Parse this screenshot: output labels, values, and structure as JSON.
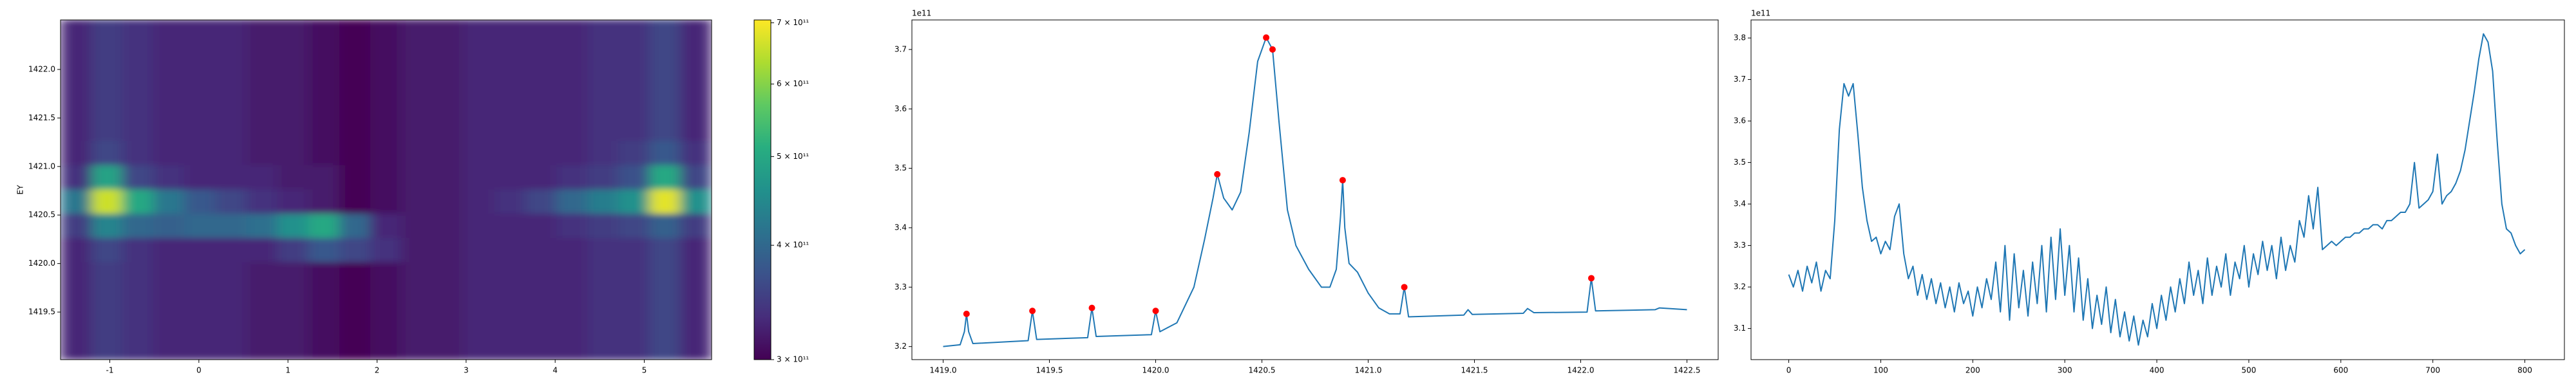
{
  "chart_data": [
    {
      "type": "heatmap",
      "ylabel": "EY",
      "xlim": [
        -1.553,
        5.756
      ],
      "ylim": [
        1419.01,
        1422.51
      ],
      "xticks": [
        -1,
        0,
        1,
        2,
        3,
        4,
        5
      ],
      "yticks": [
        1419.5,
        {
          "value": 1420,
          "label": "1420.0"
        },
        1420.5,
        {
          "value": 1421,
          "label": "1421.0"
        },
        1421.5,
        {
          "value": 1422,
          "label": "1422.0"
        }
      ],
      "colormap": "viridis",
      "color_scale": "log",
      "clim": [
        300000000000.0,
        705000000000.0
      ],
      "colorbar_ticks": [
        {
          "value": 300000000000.0,
          "label": "3 × 10¹¹"
        },
        {
          "value": 400000000000.0,
          "label": "4 × 10¹¹"
        },
        {
          "value": 500000000000.0,
          "label": "5 × 10¹¹"
        },
        {
          "value": 600000000000.0,
          "label": "6 × 10¹¹"
        },
        {
          "value": 700000000000.0,
          "label": "7 × 10¹¹"
        }
      ],
      "z": [
        [
          330000000000.0,
          350000000000.0,
          340000000000.0,
          330000000000.0,
          330000000000.0,
          330000000000.0,
          320000000000.0,
          320000000000.0,
          310000000000.0,
          300000000000.0,
          310000000000.0,
          320000000000.0,
          320000000000.0,
          330000000000.0,
          330000000000.0,
          330000000000.0,
          330000000000.0,
          340000000000.0,
          340000000000.0,
          360000000000.0,
          330000000000.0
        ],
        [
          330000000000.0,
          350000000000.0,
          340000000000.0,
          330000000000.0,
          330000000000.0,
          330000000000.0,
          320000000000.0,
          320000000000.0,
          310000000000.0,
          300000000000.0,
          310000000000.0,
          320000000000.0,
          320000000000.0,
          330000000000.0,
          330000000000.0,
          330000000000.0,
          330000000000.0,
          340000000000.0,
          340000000000.0,
          360000000000.0,
          330000000000.0
        ],
        [
          330000000000.0,
          350000000000.0,
          340000000000.0,
          330000000000.0,
          330000000000.0,
          330000000000.0,
          320000000000.0,
          320000000000.0,
          310000000000.0,
          300000000000.0,
          310000000000.0,
          320000000000.0,
          320000000000.0,
          330000000000.0,
          330000000000.0,
          330000000000.0,
          330000000000.0,
          340000000000.0,
          340000000000.0,
          360000000000.0,
          330000000000.0
        ],
        [
          330000000000.0,
          350000000000.0,
          340000000000.0,
          330000000000.0,
          330000000000.0,
          330000000000.0,
          320000000000.0,
          320000000000.0,
          310000000000.0,
          300000000000.0,
          310000000000.0,
          320000000000.0,
          320000000000.0,
          330000000000.0,
          330000000000.0,
          330000000000.0,
          330000000000.0,
          340000000000.0,
          340000000000.0,
          360000000000.0,
          330000000000.0
        ],
        [
          330000000000.0,
          350000000000.0,
          340000000000.0,
          330000000000.0,
          330000000000.0,
          330000000000.0,
          320000000000.0,
          320000000000.0,
          310000000000.0,
          300000000000.0,
          310000000000.0,
          320000000000.0,
          320000000000.0,
          330000000000.0,
          330000000000.0,
          330000000000.0,
          330000000000.0,
          340000000000.0,
          340000000000.0,
          360000000000.0,
          330000000000.0
        ],
        [
          330000000000.0,
          360000000000.0,
          340000000000.0,
          330000000000.0,
          330000000000.0,
          330000000000.0,
          320000000000.0,
          320000000000.0,
          310000000000.0,
          300000000000.0,
          310000000000.0,
          320000000000.0,
          320000000000.0,
          330000000000.0,
          330000000000.0,
          330000000000.0,
          330000000000.0,
          340000000000.0,
          350000000000.0,
          380000000000.0,
          340000000000.0
        ],
        [
          340000000000.0,
          490000000000.0,
          360000000000.0,
          340000000000.0,
          330000000000.0,
          330000000000.0,
          330000000000.0,
          320000000000.0,
          320000000000.0,
          300000000000.0,
          310000000000.0,
          320000000000.0,
          320000000000.0,
          330000000000.0,
          330000000000.0,
          330000000000.0,
          340000000000.0,
          350000000000.0,
          370000000000.0,
          500000000000.0,
          360000000000.0
        ],
        [
          420000000000.0,
          660000000000.0,
          500000000000.0,
          420000000000.0,
          380000000000.0,
          360000000000.0,
          340000000000.0,
          330000000000.0,
          320000000000.0,
          300000000000.0,
          310000000000.0,
          320000000000.0,
          320000000000.0,
          330000000000.0,
          340000000000.0,
          360000000000.0,
          400000000000.0,
          430000000000.0,
          460000000000.0,
          680000000000.0,
          460000000000.0
        ],
        [
          350000000000.0,
          440000000000.0,
          400000000000.0,
          390000000000.0,
          400000000000.0,
          400000000000.0,
          410000000000.0,
          460000000000.0,
          500000000000.0,
          400000000000.0,
          330000000000.0,
          320000000000.0,
          320000000000.0,
          330000000000.0,
          330000000000.0,
          330000000000.0,
          340000000000.0,
          350000000000.0,
          360000000000.0,
          390000000000.0,
          350000000000.0
        ],
        [
          330000000000.0,
          360000000000.0,
          340000000000.0,
          330000000000.0,
          330000000000.0,
          330000000000.0,
          330000000000.0,
          350000000000.0,
          380000000000.0,
          360000000000.0,
          340000000000.0,
          320000000000.0,
          320000000000.0,
          330000000000.0,
          330000000000.0,
          330000000000.0,
          330000000000.0,
          340000000000.0,
          340000000000.0,
          360000000000.0,
          330000000000.0
        ],
        [
          330000000000.0,
          350000000000.0,
          340000000000.0,
          330000000000.0,
          330000000000.0,
          330000000000.0,
          320000000000.0,
          320000000000.0,
          310000000000.0,
          300000000000.0,
          310000000000.0,
          320000000000.0,
          320000000000.0,
          330000000000.0,
          330000000000.0,
          330000000000.0,
          330000000000.0,
          340000000000.0,
          340000000000.0,
          360000000000.0,
          330000000000.0
        ],
        [
          330000000000.0,
          350000000000.0,
          340000000000.0,
          330000000000.0,
          330000000000.0,
          330000000000.0,
          320000000000.0,
          320000000000.0,
          310000000000.0,
          300000000000.0,
          310000000000.0,
          320000000000.0,
          320000000000.0,
          330000000000.0,
          330000000000.0,
          330000000000.0,
          330000000000.0,
          340000000000.0,
          340000000000.0,
          360000000000.0,
          330000000000.0
        ],
        [
          330000000000.0,
          350000000000.0,
          340000000000.0,
          330000000000.0,
          330000000000.0,
          330000000000.0,
          320000000000.0,
          320000000000.0,
          310000000000.0,
          300000000000.0,
          310000000000.0,
          320000000000.0,
          320000000000.0,
          330000000000.0,
          330000000000.0,
          330000000000.0,
          330000000000.0,
          340000000000.0,
          340000000000.0,
          360000000000.0,
          330000000000.0
        ],
        [
          330000000000.0,
          350000000000.0,
          340000000000.0,
          330000000000.0,
          330000000000.0,
          330000000000.0,
          320000000000.0,
          320000000000.0,
          310000000000.0,
          300000000000.0,
          310000000000.0,
          320000000000.0,
          320000000000.0,
          330000000000.0,
          330000000000.0,
          330000000000.0,
          330000000000.0,
          340000000000.0,
          340000000000.0,
          360000000000.0,
          330000000000.0
        ]
      ]
    },
    {
      "type": "line",
      "offset_label": "1e11",
      "xlim": [
        1418.853,
        1422.647
      ],
      "ylim": [
        3.178,
        3.7497
      ],
      "xticks": [
        {
          "value": 1419,
          "label": "1419.0"
        },
        1419.5,
        {
          "value": 1420,
          "label": "1420.0"
        },
        1420.5,
        {
          "value": 1421,
          "label": "1421.0"
        },
        1421.5,
        {
          "value": 1422,
          "label": "1422.0"
        },
        1422.5
      ],
      "yticks": [
        3.2,
        3.3,
        3.4,
        3.5,
        3.6,
        3.7
      ],
      "series": [
        {
          "type": "line",
          "color": "#1f77b4",
          "x": [
            1419.0,
            1419.08,
            1419.1,
            1419.11,
            1419.12,
            1419.14,
            1419.4,
            1419.42,
            1419.44,
            1419.68,
            1419.7,
            1419.72,
            1419.98,
            1420.0,
            1420.02,
            1420.1,
            1420.18,
            1420.23,
            1420.27,
            1420.29,
            1420.32,
            1420.36,
            1420.4,
            1420.44,
            1420.48,
            1420.52,
            1420.55,
            1420.58,
            1420.62,
            1420.66,
            1420.72,
            1420.78,
            1420.82,
            1420.85,
            1420.87,
            1420.88,
            1420.89,
            1420.91,
            1420.95,
            1421.0,
            1421.05,
            1421.1,
            1421.15,
            1421.17,
            1421.19,
            1421.45,
            1421.47,
            1421.49,
            1421.73,
            1421.75,
            1421.78,
            1422.03,
            1422.05,
            1422.07,
            1422.35,
            1422.37,
            1422.5
          ],
          "values": [
            3.2,
            3.203,
            3.225,
            3.255,
            3.225,
            3.205,
            3.21,
            3.26,
            3.212,
            3.215,
            3.265,
            3.217,
            3.22,
            3.26,
            3.225,
            3.24,
            3.3,
            3.38,
            3.45,
            3.49,
            3.45,
            3.43,
            3.46,
            3.56,
            3.68,
            3.72,
            3.7,
            3.58,
            3.43,
            3.37,
            3.33,
            3.3,
            3.3,
            3.33,
            3.42,
            3.48,
            3.4,
            3.34,
            3.325,
            3.29,
            3.265,
            3.255,
            3.255,
            3.3,
            3.25,
            3.253,
            3.262,
            3.254,
            3.256,
            3.264,
            3.257,
            3.258,
            3.315,
            3.26,
            3.262,
            3.265,
            3.262
          ]
        },
        {
          "type": "scatter",
          "color": "#ff0000",
          "x": [
            1419.11,
            1419.42,
            1419.7,
            1420.0,
            1420.29,
            1420.52,
            1420.55,
            1420.88,
            1421.17,
            1422.05
          ],
          "values": [
            3.255,
            3.26,
            3.265,
            3.26,
            3.49,
            3.72,
            3.7,
            3.48,
            3.3,
            3.315
          ]
        }
      ]
    },
    {
      "type": "line",
      "offset_label": "1e11",
      "xlim": [
        -41,
        843
      ],
      "ylim": [
        3.025,
        3.8435
      ],
      "xticks": [
        0,
        100,
        200,
        300,
        400,
        500,
        600,
        700,
        800
      ],
      "yticks": [
        3.1,
        3.2,
        3.3,
        3.4,
        3.5,
        3.6,
        3.7,
        3.8
      ],
      "series": [
        {
          "type": "line",
          "color": "#1f77b4",
          "x": [
            0,
            5,
            10,
            15,
            20,
            25,
            30,
            35,
            40,
            45,
            50,
            55,
            60,
            65,
            70,
            75,
            80,
            85,
            90,
            95,
            100,
            105,
            110,
            115,
            120,
            125,
            130,
            135,
            140,
            145,
            150,
            155,
            160,
            165,
            170,
            175,
            180,
            185,
            190,
            195,
            200,
            205,
            210,
            215,
            220,
            225,
            230,
            235,
            240,
            245,
            250,
            255,
            260,
            265,
            270,
            275,
            280,
            285,
            290,
            295,
            300,
            305,
            310,
            315,
            320,
            325,
            330,
            335,
            340,
            345,
            350,
            355,
            360,
            365,
            370,
            375,
            380,
            385,
            390,
            395,
            400,
            405,
            410,
            415,
            420,
            425,
            430,
            435,
            440,
            445,
            450,
            455,
            460,
            465,
            470,
            475,
            480,
            485,
            490,
            495,
            500,
            505,
            510,
            515,
            520,
            525,
            530,
            535,
            540,
            545,
            550,
            555,
            560,
            565,
            570,
            575,
            580,
            585,
            590,
            595,
            600,
            605,
            610,
            615,
            620,
            625,
            630,
            635,
            640,
            645,
            650,
            655,
            660,
            665,
            670,
            675,
            680,
            685,
            690,
            695,
            700,
            705,
            710,
            715,
            720,
            725,
            730,
            735,
            740,
            745,
            750,
            755,
            760,
            765,
            770,
            775,
            780,
            785,
            790,
            795,
            800
          ],
          "values": [
            3.23,
            3.2,
            3.24,
            3.19,
            3.25,
            3.21,
            3.26,
            3.19,
            3.24,
            3.22,
            3.36,
            3.58,
            3.69,
            3.66,
            3.69,
            3.57,
            3.44,
            3.36,
            3.31,
            3.32,
            3.28,
            3.31,
            3.29,
            3.37,
            3.4,
            3.28,
            3.22,
            3.25,
            3.18,
            3.23,
            3.17,
            3.22,
            3.16,
            3.21,
            3.15,
            3.2,
            3.14,
            3.21,
            3.16,
            3.19,
            3.13,
            3.2,
            3.15,
            3.22,
            3.17,
            3.26,
            3.14,
            3.3,
            3.12,
            3.28,
            3.15,
            3.24,
            3.13,
            3.26,
            3.16,
            3.3,
            3.14,
            3.32,
            3.17,
            3.34,
            3.18,
            3.3,
            3.14,
            3.27,
            3.12,
            3.22,
            3.1,
            3.18,
            3.11,
            3.2,
            3.09,
            3.17,
            3.08,
            3.14,
            3.07,
            3.13,
            3.06,
            3.12,
            3.08,
            3.16,
            3.1,
            3.18,
            3.12,
            3.2,
            3.14,
            3.22,
            3.16,
            3.26,
            3.18,
            3.24,
            3.16,
            3.27,
            3.18,
            3.25,
            3.2,
            3.28,
            3.18,
            3.26,
            3.22,
            3.3,
            3.2,
            3.28,
            3.23,
            3.31,
            3.24,
            3.3,
            3.22,
            3.32,
            3.24,
            3.3,
            3.26,
            3.36,
            3.32,
            3.42,
            3.34,
            3.44,
            3.29,
            3.3,
            3.31,
            3.3,
            3.31,
            3.32,
            3.32,
            3.33,
            3.33,
            3.34,
            3.34,
            3.35,
            3.35,
            3.34,
            3.36,
            3.36,
            3.37,
            3.38,
            3.38,
            3.4,
            3.5,
            3.39,
            3.4,
            3.41,
            3.43,
            3.52,
            3.4,
            3.42,
            3.43,
            3.45,
            3.48,
            3.53,
            3.6,
            3.67,
            3.75,
            3.81,
            3.79,
            3.72,
            3.55,
            3.4,
            3.34,
            3.33,
            3.3,
            3.28,
            3.29
          ]
        }
      ]
    }
  ]
}
